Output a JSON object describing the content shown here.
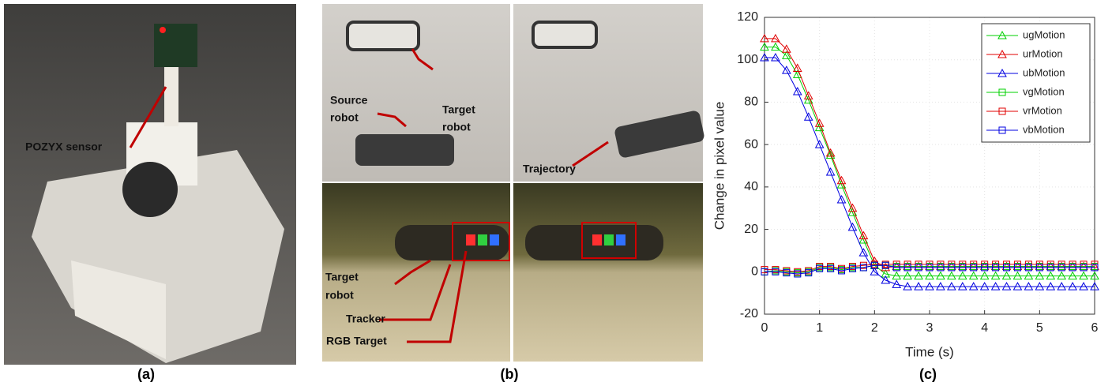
{
  "panels": {
    "a": {
      "caption": "(a)",
      "annotation": "POZYX sensor"
    },
    "b": {
      "caption": "(b)",
      "target_robot": [
        "Target",
        "robot"
      ],
      "source_robot": [
        "Source",
        "robot"
      ],
      "trajectory": "Trajectory",
      "target_robot_2": [
        "Target",
        "robot"
      ],
      "tracker": "Tracker",
      "rgb_target": "RGB Target"
    },
    "c": {
      "caption": "(c)"
    }
  },
  "chart_data": {
    "type": "line",
    "xlabel": "Time (s)",
    "ylabel": "Change in pixel value",
    "x": [
      0,
      0.2,
      0.4,
      0.6,
      0.8,
      1,
      1.2,
      1.4,
      1.6,
      1.8,
      2,
      2.2,
      2.4,
      2.6,
      2.8,
      3,
      3.2,
      3.4,
      3.6,
      3.8,
      4,
      4.2,
      4.4,
      4.6,
      4.8,
      5,
      5.2,
      5.4,
      5.6,
      5.8,
      6
    ],
    "xlim": [
      0,
      6
    ],
    "xticks": [
      0,
      1,
      2,
      3,
      4,
      5,
      6
    ],
    "ylim": [
      -20,
      120
    ],
    "yticks": [
      -20,
      0,
      20,
      40,
      60,
      80,
      100,
      120
    ],
    "grid": true,
    "legend": "upper right",
    "series": [
      {
        "name": "ugMotion",
        "color": "#00d000",
        "marker": "triangle",
        "values": [
          106,
          106,
          102,
          93,
          81,
          68,
          55,
          41,
          28,
          15,
          3,
          -1,
          -2,
          -2,
          -2,
          -2,
          -2,
          -2,
          -2,
          -2,
          -2,
          -2,
          -2,
          -2,
          -2,
          -2,
          -2,
          -2,
          -2,
          -2,
          -2
        ]
      },
      {
        "name": "urMotion",
        "color": "#e00000",
        "marker": "triangle",
        "values": [
          110,
          110,
          105,
          96,
          83,
          70,
          56,
          43,
          30,
          17,
          5,
          2,
          2.5,
          2.5,
          2.5,
          2.5,
          2.5,
          2.5,
          2.5,
          2.5,
          2.5,
          2.5,
          2.5,
          2.5,
          2.5,
          2.5,
          2.5,
          2.5,
          2.5,
          2.5,
          2.5
        ]
      },
      {
        "name": "ubMotion",
        "color": "#0000e0",
        "marker": "triangle",
        "values": [
          101,
          101,
          95,
          85,
          73,
          60,
          47,
          34,
          21,
          9,
          0,
          -4,
          -6,
          -7,
          -7,
          -7,
          -7,
          -7,
          -7,
          -7,
          -7,
          -7,
          -7,
          -7,
          -7,
          -7,
          -7,
          -7,
          -7,
          -7,
          -7
        ]
      },
      {
        "name": "vgMotion",
        "color": "#00d000",
        "marker": "square",
        "values": [
          0,
          0.5,
          0,
          -0.5,
          0,
          2,
          2,
          1,
          2,
          2,
          3,
          3,
          2.5,
          2.5,
          2.5,
          2.5,
          2.5,
          2.5,
          2.5,
          2.5,
          2.5,
          2.5,
          2.5,
          2.5,
          2.5,
          2.5,
          2.5,
          2.5,
          2.5,
          2.5,
          2.5
        ]
      },
      {
        "name": "vrMotion",
        "color": "#e00000",
        "marker": "square",
        "values": [
          1,
          1,
          0.5,
          0,
          0.5,
          2.5,
          2.5,
          1.5,
          2.5,
          3,
          3.5,
          3.5,
          3.5,
          3.5,
          3.5,
          3.5,
          3.5,
          3.5,
          3.5,
          3.5,
          3.5,
          3.5,
          3.5,
          3.5,
          3.5,
          3.5,
          3.5,
          3.5,
          3.5,
          3.5,
          3.5
        ]
      },
      {
        "name": "vbMotion",
        "color": "#0000e0",
        "marker": "square",
        "values": [
          0,
          0,
          -0.5,
          -1,
          -0.5,
          1.5,
          1.5,
          0.5,
          1.5,
          2,
          3,
          3,
          2,
          2,
          2,
          2,
          2,
          2,
          2,
          2,
          2,
          2,
          2,
          2,
          2,
          2,
          2,
          2,
          2,
          2,
          2
        ]
      }
    ]
  }
}
